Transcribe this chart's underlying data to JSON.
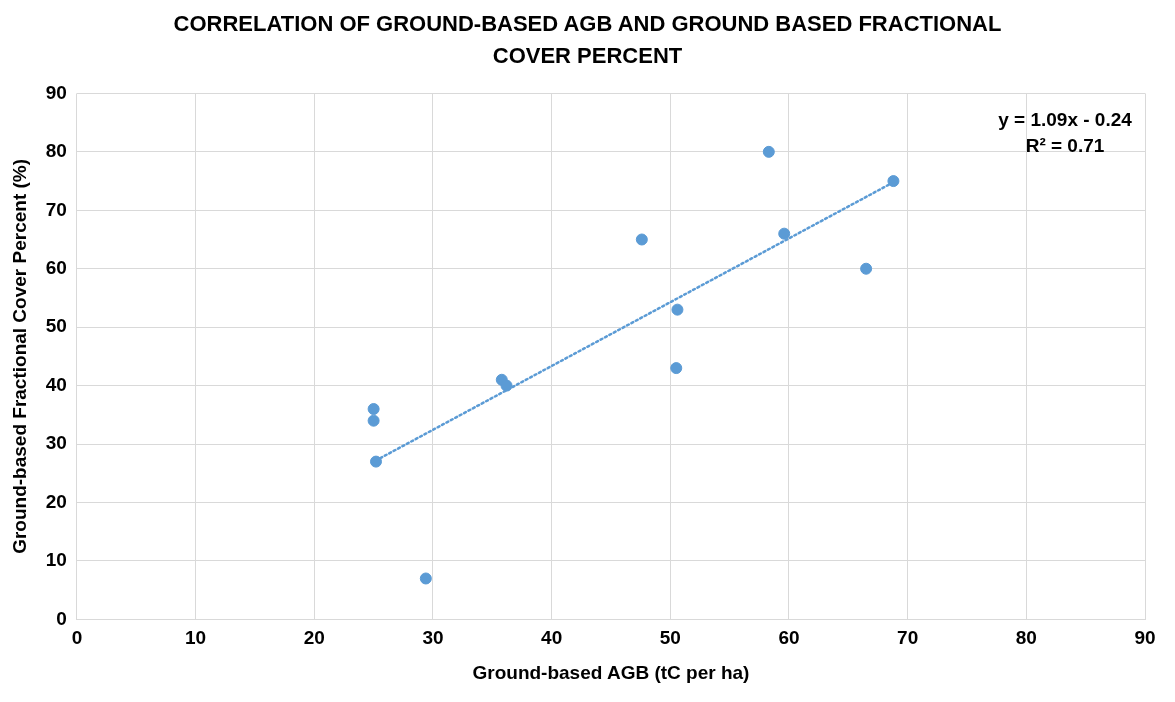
{
  "chart_data": {
    "type": "scatter",
    "title": "CORRELATION OF GROUND-BASED AGB AND GROUND BASED FRACTIONAL COVER PERCENT",
    "xlabel": "Ground-based AGB (tC per ha)",
    "ylabel": "Ground-based Fractional Cover Percent (%)",
    "xlim": [
      0,
      90
    ],
    "xticks": [
      0,
      10,
      20,
      30,
      40,
      50,
      60,
      70,
      80,
      90
    ],
    "ylim": [
      0,
      90
    ],
    "yticks": [
      0,
      10,
      20,
      30,
      40,
      50,
      60,
      70,
      80,
      90
    ],
    "grid": true,
    "legend": false,
    "marker": "circle",
    "series": [
      {
        "type": "line",
        "color": "#5b9bd5",
        "line_style": "dotted",
        "marker": "none",
        "x": [
          25.2,
          68.8
        ],
        "values": [
          27.2,
          74.8
        ]
      },
      {
        "color": "#5b9bd5",
        "x": [
          25,
          25,
          25.2,
          29.4,
          35.8,
          36.2,
          47.6,
          50.6,
          50.5,
          58.3,
          59.6,
          66.5,
          68.8
        ],
        "values": [
          36,
          34,
          27,
          7,
          41,
          40,
          65,
          53,
          43,
          80,
          66,
          60,
          75
        ]
      }
    ],
    "annotations": [
      "y = 1.09x - 0.24",
      "R² = 0.71"
    ]
  }
}
